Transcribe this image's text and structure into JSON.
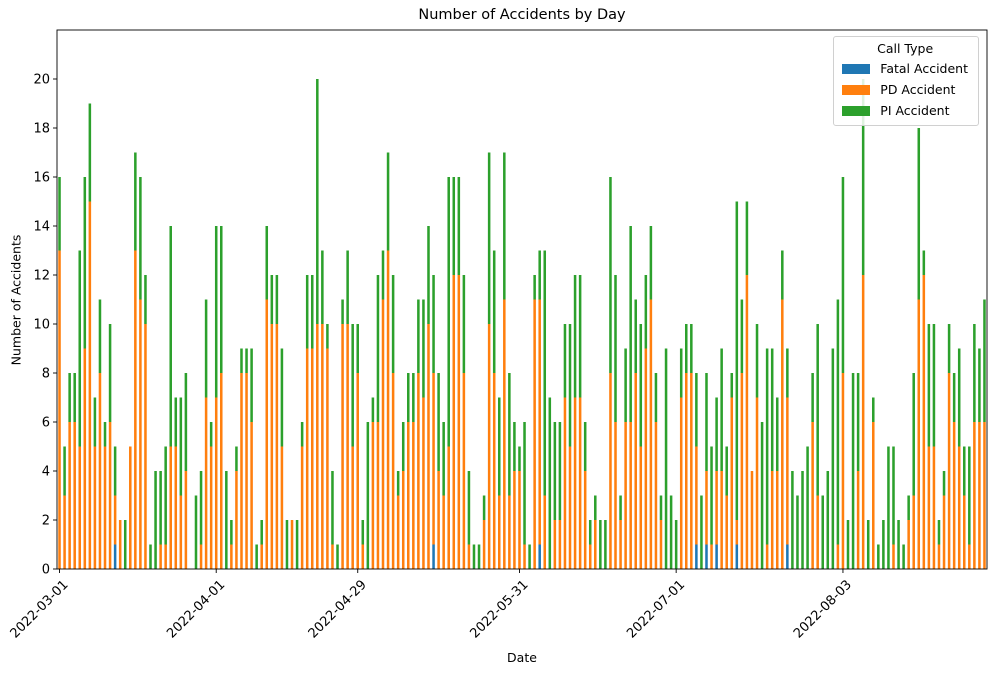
{
  "chart_data": {
    "type": "bar",
    "stacked": true,
    "title": "Number of Accidents by Day",
    "xlabel": "Date",
    "ylabel": "Number of Accidents",
    "ylim": [
      0,
      22
    ],
    "yticks": [
      0,
      2,
      4,
      6,
      8,
      10,
      12,
      14,
      16,
      18,
      20
    ],
    "x_tick_labels": [
      {
        "index": 0,
        "label": "2022-03-01"
      },
      {
        "index": 31,
        "label": "2022-04-01"
      },
      {
        "index": 59,
        "label": "2022-04-29"
      },
      {
        "index": 91,
        "label": "2022-05-31"
      },
      {
        "index": 122,
        "label": "2022-07-01"
      },
      {
        "index": 155,
        "label": "2022-08-03"
      }
    ],
    "legend": {
      "title": "Call Type",
      "position": "top-right"
    },
    "series": [
      {
        "name": "Fatal Accident",
        "color": "#1f77b4",
        "values": [
          0,
          0,
          0,
          0,
          0,
          0,
          0,
          0,
          0,
          0,
          0,
          1,
          0,
          0,
          0,
          0,
          0,
          0,
          0,
          0,
          0,
          0,
          0,
          0,
          0,
          0,
          0,
          0,
          0,
          0,
          0,
          0,
          0,
          0,
          0,
          0,
          0,
          0,
          0,
          0,
          0,
          0,
          0,
          0,
          0,
          0,
          0,
          0,
          0,
          0,
          0,
          0,
          0,
          0,
          0,
          0,
          0,
          0,
          0,
          0,
          0,
          0,
          0,
          0,
          0,
          0,
          0,
          0,
          0,
          0,
          0,
          0,
          0,
          0,
          1,
          0,
          0,
          0,
          0,
          0,
          0,
          0,
          0,
          0,
          0,
          0,
          0,
          0,
          0,
          0,
          0,
          0,
          0,
          0,
          0,
          1,
          0,
          0,
          0,
          0,
          0,
          0,
          0,
          0,
          0,
          0,
          0,
          0,
          0,
          0,
          0,
          0,
          0,
          0,
          0,
          0,
          0,
          0,
          0,
          0,
          0,
          0,
          0,
          0,
          0,
          0,
          1,
          0,
          1,
          0,
          1,
          0,
          0,
          0,
          1,
          0,
          0,
          0,
          0,
          0,
          0,
          0,
          0,
          0,
          1,
          0,
          0,
          0,
          0,
          0,
          0,
          0,
          0,
          0,
          0,
          0,
          0,
          0,
          0,
          0,
          0,
          0,
          0,
          0,
          0,
          0,
          0,
          0,
          0,
          0,
          0,
          0,
          0,
          0,
          0,
          0,
          0,
          0,
          0,
          0,
          0,
          0,
          0,
          0
        ]
      },
      {
        "name": "PD Accident",
        "color": "#ff7f0e",
        "values": [
          13,
          3,
          6,
          6,
          5,
          9,
          15,
          5,
          8,
          5,
          6,
          2,
          2,
          0,
          5,
          13,
          11,
          10,
          0,
          0,
          1,
          1,
          5,
          5,
          3,
          4,
          0,
          0,
          1,
          7,
          5,
          7,
          8,
          0,
          1,
          4,
          8,
          8,
          6,
          0,
          1,
          11,
          10,
          10,
          5,
          0,
          2,
          0,
          5,
          9,
          9,
          10,
          10,
          9,
          1,
          0,
          10,
          10,
          5,
          8,
          1,
          0,
          6,
          6,
          11,
          13,
          8,
          3,
          4,
          6,
          6,
          8,
          7,
          10,
          7,
          4,
          3,
          5,
          12,
          12,
          8,
          1,
          0,
          0,
          2,
          10,
          8,
          3,
          11,
          3,
          4,
          4,
          1,
          0,
          11,
          10,
          3,
          0,
          2,
          2,
          7,
          5,
          7,
          7,
          4,
          1,
          2,
          0,
          0,
          8,
          6,
          2,
          6,
          6,
          8,
          5,
          9,
          11,
          6,
          2,
          0,
          0,
          0,
          7,
          8,
          8,
          4,
          0,
          3,
          1,
          3,
          4,
          3,
          7,
          1,
          8,
          12,
          4,
          7,
          0,
          1,
          4,
          4,
          11,
          6,
          0,
          0,
          0,
          0,
          6,
          3,
          0,
          0,
          0,
          1,
          8,
          0,
          0,
          4,
          12,
          0,
          6,
          0,
          0,
          0,
          1,
          0,
          0,
          2,
          3,
          11,
          12,
          5,
          5,
          1,
          3,
          8,
          6,
          5,
          3,
          1,
          6,
          6,
          6
        ]
      },
      {
        "name": "PI Accident",
        "color": "#2ca02c",
        "values": [
          3,
          2,
          2,
          2,
          8,
          7,
          4,
          2,
          3,
          1,
          4,
          2,
          0,
          2,
          0,
          4,
          5,
          2,
          1,
          4,
          3,
          4,
          9,
          2,
          4,
          4,
          0,
          3,
          3,
          4,
          1,
          7,
          6,
          4,
          1,
          1,
          1,
          1,
          3,
          1,
          1,
          3,
          2,
          2,
          4,
          2,
          0,
          2,
          1,
          3,
          3,
          10,
          3,
          1,
          3,
          1,
          1,
          3,
          5,
          2,
          1,
          6,
          1,
          6,
          2,
          4,
          4,
          1,
          2,
          2,
          2,
          3,
          4,
          4,
          4,
          4,
          3,
          11,
          4,
          4,
          4,
          3,
          1,
          1,
          1,
          7,
          5,
          4,
          6,
          5,
          2,
          1,
          5,
          1,
          1,
          2,
          10,
          7,
          4,
          4,
          3,
          5,
          5,
          5,
          2,
          1,
          1,
          2,
          2,
          8,
          6,
          1,
          3,
          8,
          3,
          5,
          3,
          3,
          2,
          1,
          9,
          3,
          2,
          2,
          2,
          2,
          3,
          3,
          4,
          4,
          3,
          5,
          2,
          1,
          13,
          3,
          3,
          0,
          3,
          6,
          8,
          5,
          3,
          2,
          2,
          4,
          3,
          4,
          5,
          2,
          7,
          3,
          4,
          9,
          10,
          8,
          2,
          8,
          4,
          8,
          2,
          1,
          1,
          2,
          5,
          4,
          2,
          1,
          1,
          5,
          7,
          1,
          5,
          5,
          1,
          1,
          2,
          2,
          4,
          2,
          4,
          4,
          3,
          5
        ]
      }
    ]
  }
}
